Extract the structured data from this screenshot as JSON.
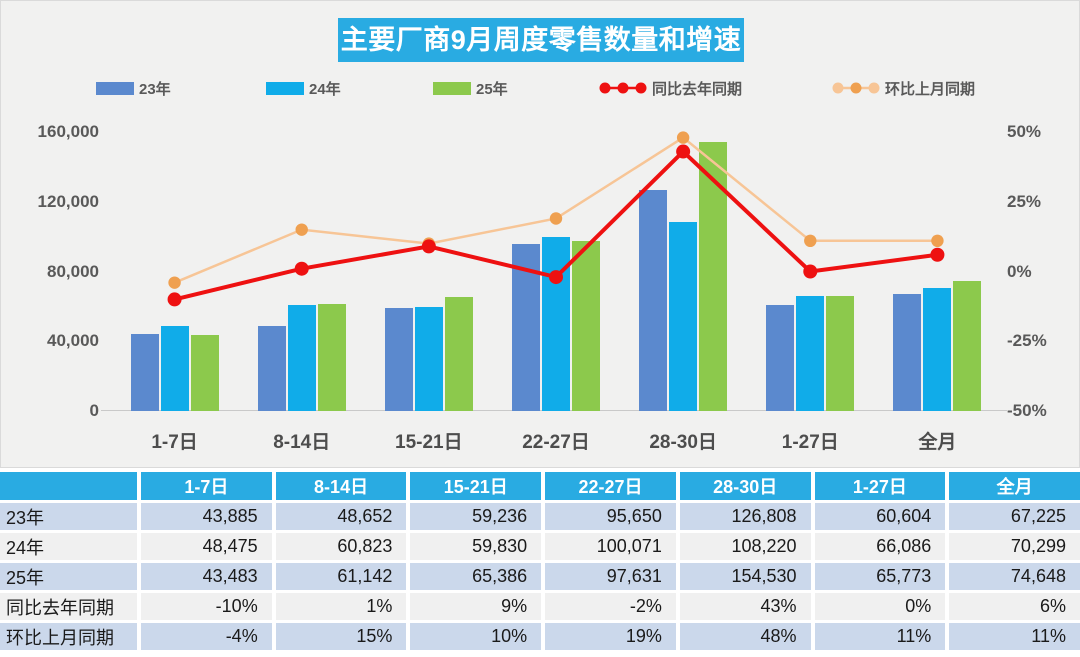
{
  "title": "主要厂商9月周度零售数量和增速",
  "colors": {
    "accent": "#29ABE2",
    "panel_bg": "#F1F1F0",
    "table_row_blue": "#CBD8EB",
    "table_row_gray": "#F0F0F0",
    "bar_23": "#5B89CE",
    "bar_24": "#10ACE9",
    "bar_25": "#8CC94C",
    "line_yoy": "#EE1111",
    "line_mom": "#F7C596",
    "line_mom_marker": "#EFA050"
  },
  "chart_data": {
    "type": "bar+line",
    "title": "主要厂商9月周度零售数量和增速",
    "categories": [
      "1-7日",
      "8-14日",
      "15-21日",
      "22-27日",
      "28-30日",
      "1-27日",
      "全月"
    ],
    "series": [
      {
        "name": "23年",
        "type": "bar",
        "axis": "left",
        "color": "#5B89CE",
        "values": [
          43885,
          48652,
          59236,
          95650,
          126808,
          60604,
          67225
        ]
      },
      {
        "name": "24年",
        "type": "bar",
        "axis": "left",
        "color": "#10ACE9",
        "values": [
          48475,
          60823,
          59830,
          100071,
          108220,
          66086,
          70299
        ]
      },
      {
        "name": "25年",
        "type": "bar",
        "axis": "left",
        "color": "#8CC94C",
        "values": [
          43483,
          61142,
          65386,
          97631,
          154530,
          65773,
          74648
        ]
      },
      {
        "name": "同比去年同期",
        "type": "line",
        "axis": "right",
        "color": "#EE1111",
        "marker_color": "#EE1111",
        "values": [
          -10,
          1,
          9,
          -2,
          43,
          0,
          6
        ]
      },
      {
        "name": "环比上月同期",
        "type": "line",
        "axis": "right",
        "color": "#F7C596",
        "marker_color": "#EFA050",
        "values": [
          -4,
          15,
          10,
          19,
          48,
          11,
          11
        ]
      }
    ],
    "left_axis": {
      "min": 0,
      "max": 160000,
      "ticks": [
        "160,000",
        "120,000",
        "80,000",
        "40,000",
        "0"
      ]
    },
    "right_axis": {
      "min": -50,
      "max": 50,
      "ticks": [
        "50%",
        "25%",
        "0%",
        "-25%",
        "-50%"
      ]
    },
    "legend_position": "top",
    "grid": false
  },
  "table": {
    "header": [
      "",
      "1-7日",
      "8-14日",
      "15-21日",
      "22-27日",
      "28-30日",
      "1-27日",
      "全月"
    ],
    "rows": [
      {
        "label": "23年",
        "values": [
          "43,885",
          "48,652",
          "59,236",
          "95,650",
          "126,808",
          "60,604",
          "67,225"
        ]
      },
      {
        "label": "24年",
        "values": [
          "48,475",
          "60,823",
          "59,830",
          "100,071",
          "108,220",
          "66,086",
          "70,299"
        ]
      },
      {
        "label": "25年",
        "values": [
          "43,483",
          "61,142",
          "65,386",
          "97,631",
          "154,530",
          "65,773",
          "74,648"
        ]
      },
      {
        "label": "同比去年同期",
        "values": [
          "-10%",
          "1%",
          "9%",
          "-2%",
          "43%",
          "0%",
          "6%"
        ]
      },
      {
        "label": "环比上月同期",
        "values": [
          "-4%",
          "15%",
          "10%",
          "19%",
          "48%",
          "11%",
          "11%"
        ]
      }
    ]
  }
}
